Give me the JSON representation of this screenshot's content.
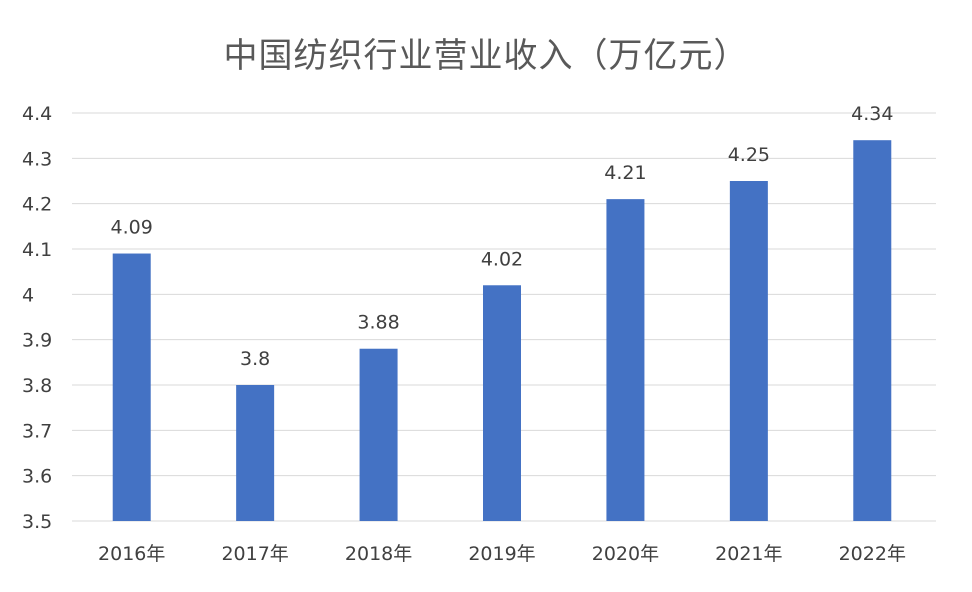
{
  "chart_data": {
    "type": "bar",
    "title": "中国纺织行业营业收入（万亿元）",
    "xlabel": "",
    "ylabel": "",
    "categories": [
      "2016年",
      "2017年",
      "2018年",
      "2019年",
      "2020年",
      "2021年",
      "2022年"
    ],
    "values": [
      4.09,
      3.8,
      3.88,
      4.02,
      4.21,
      4.25,
      4.34
    ],
    "data_labels": [
      "4.09",
      "3.8",
      "3.88",
      "4.02",
      "4.21",
      "4.25",
      "4.34"
    ],
    "ylim": [
      3.5,
      4.4
    ],
    "yticks": [
      3.5,
      3.6,
      3.7,
      3.8,
      3.9,
      4.0,
      4.1,
      4.2,
      4.3,
      4.4
    ],
    "ytick_labels": [
      "3.5",
      "3.6",
      "3.7",
      "3.8",
      "3.9",
      "4",
      "4.1",
      "4.2",
      "4.3",
      "4.4"
    ],
    "grid": true,
    "legend": "none",
    "bar_color": "#4472C4",
    "grid_color": "#d9d9d9"
  }
}
